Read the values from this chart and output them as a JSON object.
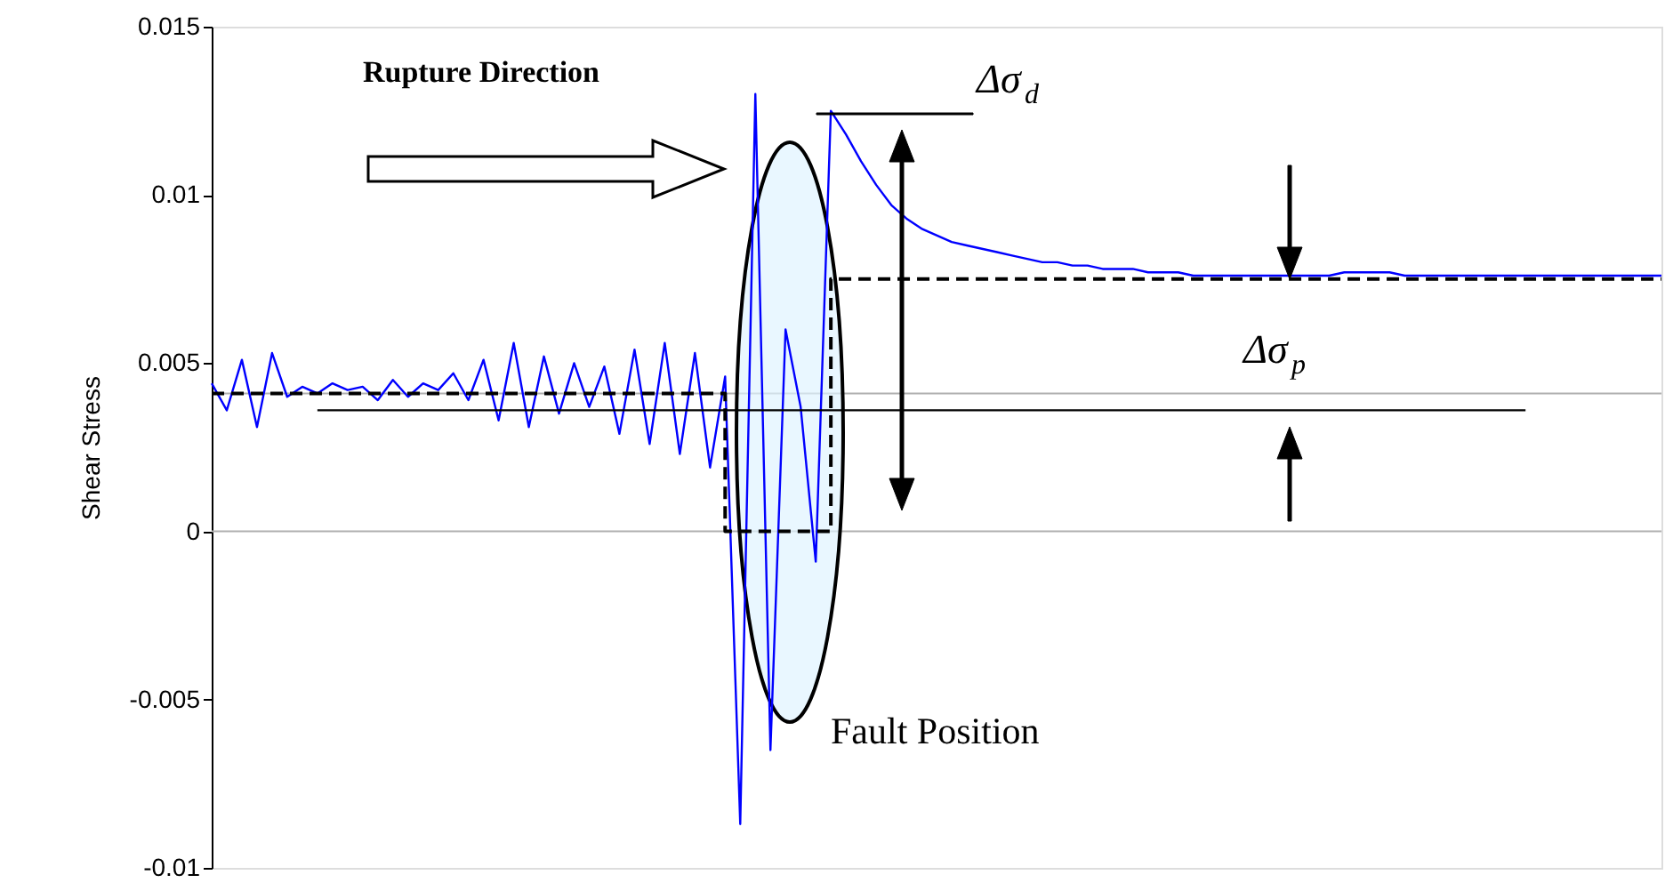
{
  "chart_data": {
    "type": "line",
    "ylabel": "Shear Stress",
    "categories": [
      null,
      null,
      null,
      null,
      null,
      null,
      null,
      null,
      null,
      null,
      null,
      null,
      null,
      null,
      null,
      null,
      null,
      null,
      null,
      null,
      null,
      null,
      null,
      null,
      null,
      null,
      null,
      null,
      null,
      null,
      null,
      null,
      null,
      null,
      null,
      null,
      null,
      null,
      null,
      null,
      null,
      null,
      null,
      null,
      null,
      null,
      null,
      null,
      null,
      null,
      null,
      null,
      null,
      null,
      null,
      null,
      null,
      null,
      null,
      null,
      null,
      null,
      null,
      null,
      null,
      null,
      null,
      null,
      null,
      null,
      null,
      null,
      null,
      null,
      null,
      null,
      null,
      null,
      null,
      null,
      null,
      null,
      null,
      null,
      null,
      null,
      null,
      null,
      null,
      null,
      null,
      null,
      null,
      null,
      null,
      null,
      null
    ],
    "series": [
      {
        "type": "line",
        "color": "#0000ff",
        "values": [
          0.0044,
          0.0036,
          0.0051,
          0.0031,
          0.0053,
          0.004,
          0.0043,
          0.0041,
          0.0044,
          0.0042,
          0.0043,
          0.0039,
          0.0045,
          0.004,
          0.0044,
          0.0042,
          0.0047,
          0.0039,
          0.0051,
          0.0033,
          0.0056,
          0.0031,
          0.0052,
          0.0035,
          0.005,
          0.0037,
          0.0049,
          0.0029,
          0.0054,
          0.0026,
          0.0056,
          0.0023,
          0.0053,
          0.0019,
          0.0046,
          -0.0087,
          0.013,
          -0.0065,
          0.006,
          0.0037,
          -0.0009,
          0.0125,
          0.0118,
          0.011,
          0.0103,
          0.0097,
          0.0093,
          0.009,
          0.0088,
          0.0086,
          0.0085,
          0.0084,
          0.0083,
          0.0082,
          0.0081,
          0.008,
          0.008,
          0.0079,
          0.0079,
          0.0078,
          0.0078,
          0.0078,
          0.0077,
          0.0077,
          0.0077,
          0.0076,
          0.0076,
          0.0076,
          0.0076,
          0.0076,
          0.0076,
          0.0076,
          0.0076,
          0.0076,
          0.0076,
          0.0077,
          0.0077,
          0.0077,
          0.0077,
          0.0076,
          0.0076,
          0.0076,
          0.0076,
          0.0076,
          0.0076,
          0.0076,
          0.0076,
          0.0076,
          0.0076,
          0.0076,
          0.0076,
          0.0076,
          0.0076,
          0.0076,
          0.0076,
          0.0076,
          0.0076
        ]
      },
      {
        "type": "step",
        "color": "#000000",
        "line_style": "dashed",
        "values": [
          0.0041,
          0.0041,
          0.0041,
          0.0041,
          0.0041,
          0.0041,
          0.0041,
          0.0041,
          0.0041,
          0.0041,
          0.0041,
          0.0041,
          0.0041,
          0.0041,
          0.0041,
          0.0041,
          0.0041,
          0.0041,
          0.0041,
          0.0041,
          0.0041,
          0.0041,
          0.0041,
          0.0041,
          0.0041,
          0.0041,
          0.0041,
          0.0041,
          0.0041,
          0.0041,
          0.0041,
          0.0041,
          0.0041,
          0.0041,
          0,
          0,
          0,
          0,
          0,
          0,
          0,
          0.0075,
          0.0075,
          0.0075,
          0.0075,
          0.0075,
          0.0075,
          0.0075,
          0.0075,
          0.0075,
          0.0075,
          0.0075,
          0.0075,
          0.0075,
          0.0075,
          0.0075,
          0.0075,
          0.0075,
          0.0075,
          0.0075,
          0.0075,
          0.0075,
          0.0075,
          0.0075,
          0.0075,
          0.0075,
          0.0075,
          0.0075,
          0.0075,
          0.0075,
          0.0075,
          0.0075,
          0.0075,
          0.0075,
          0.0075,
          0.0075,
          0.0075,
          0.0075,
          0.0075,
          0.0075,
          0.0075,
          0.0075,
          0.0075,
          0.0075,
          0.0075,
          0.0075,
          0.0075,
          0.0075,
          0.0075,
          0.0075,
          0.0075,
          0.0075,
          0.0075,
          0.0075,
          0.0075,
          0.0075,
          0.0075
        ]
      },
      {
        "type": "line",
        "color": "#000000",
        "values": [
          null,
          null,
          null,
          null,
          null,
          null,
          null,
          0.0036,
          0.0036,
          0.0036,
          0.0036,
          0.0036,
          0.0036,
          0.0036,
          0.0036,
          0.0036,
          0.0036,
          0.0036,
          0.0036,
          0.0036,
          0.0036,
          0.0036,
          0.0036,
          0.0036,
          0.0036,
          0.0036,
          0.0036,
          0.0036,
          0.0036,
          0.0036,
          0.0036,
          0.0036,
          0.0036,
          0.0036,
          0.0036,
          0.0036,
          0.0036,
          0.0036,
          0.0036,
          0.0036,
          0.0036,
          0.0036,
          0.0036,
          0.0036,
          0.0036,
          0.0036,
          0.0036,
          0.0036,
          0.0036,
          0.0036,
          0.0036,
          0.0036,
          0.0036,
          0.0036,
          0.0036,
          0.0036,
          0.0036,
          0.0036,
          0.0036,
          0.0036,
          0.0036,
          0.0036,
          0.0036,
          0.0036,
          0.0036,
          0.0036,
          0.0036,
          0.0036,
          0.0036,
          0.0036,
          0.0036,
          0.0036,
          0.0036,
          0.0036,
          0.0036,
          0.0036,
          0.0036,
          0.0036,
          0.0036,
          0.0036,
          0.0036,
          0.0036,
          0.0036,
          0.0036,
          0.0036,
          0.0036,
          0.0036,
          0.0036,
          null,
          null,
          null,
          null,
          null,
          null,
          null,
          null,
          null
        ]
      }
    ],
    "ylim": [
      -0.01,
      0.015
    ],
    "yticks": [
      -0.01,
      -0.005,
      0,
      0.005,
      0.01,
      0.015
    ],
    "ref_lines": [
      {
        "axis": "y",
        "value": 0.0041,
        "color": "#b0b0b0"
      },
      {
        "axis": "y",
        "value": 0,
        "color": "#b0b0b0"
      }
    ],
    "annotations": [
      "Rupture Direction",
      "Fault Position",
      "Δσ$_{d}$",
      "Δσ$_{p}$"
    ]
  }
}
